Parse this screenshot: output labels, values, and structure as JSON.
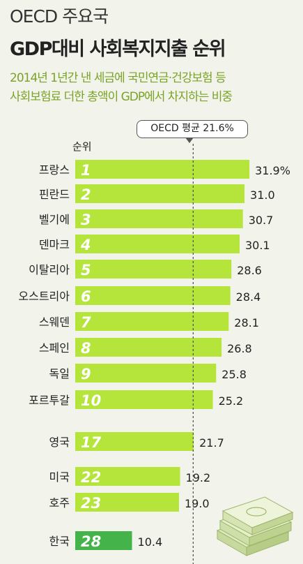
{
  "header": {
    "title_line1": "OECD 주요국",
    "title_line2": "GDP대비 사회복지지출 순위",
    "subtitle_line1": "2014년 1년간 낸 세금에 국민연금·건강보험 등",
    "subtitle_line2": "사회보험료 더한 총액이 GDP에서 차지하는 비중"
  },
  "callout_label": "OECD 평균 21.6%",
  "rank_header": "순위",
  "colors": {
    "bar": "#b5e43a",
    "bar_korea": "#44b34a",
    "rank_text": "#ffffff",
    "avg_line": "#555555"
  },
  "icon": "money-stack-icon",
  "chart_data": {
    "type": "bar",
    "orientation": "horizontal",
    "average": 21.6,
    "value_axis_range": [
      0,
      32
    ],
    "categories": [
      "프랑스",
      "핀란드",
      "벨기에",
      "덴마크",
      "이탈리아",
      "오스트리아",
      "스웨덴",
      "스페인",
      "독일",
      "포르투갈",
      "영국",
      "미국",
      "호주",
      "한국"
    ],
    "ranks": [
      "1",
      "2",
      "3",
      "4",
      "5",
      "6",
      "7",
      "8",
      "9",
      "10",
      "17",
      "22",
      "23",
      "28"
    ],
    "values": [
      31.9,
      31.0,
      30.7,
      30.1,
      28.6,
      28.4,
      28.1,
      26.8,
      25.8,
      25.2,
      21.7,
      19.2,
      19.0,
      10.4
    ],
    "value_labels": [
      "31.9%",
      "31.0",
      "30.7",
      "30.1",
      "28.6",
      "28.4",
      "28.1",
      "26.8",
      "25.8",
      "25.2",
      "21.7",
      "19.2",
      "19.0",
      "10.4"
    ]
  }
}
